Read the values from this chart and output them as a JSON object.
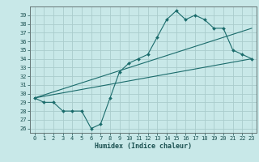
{
  "title": "",
  "xlabel": "Humidex (Indice chaleur)",
  "bg_color": "#c8e8e8",
  "grid_color": "#aacccc",
  "line_color": "#1a6b6b",
  "xlim": [
    -0.5,
    23.5
  ],
  "ylim": [
    25.5,
    40.0
  ],
  "xticks": [
    0,
    1,
    2,
    3,
    4,
    5,
    6,
    7,
    8,
    9,
    10,
    11,
    12,
    13,
    14,
    15,
    16,
    17,
    18,
    19,
    20,
    21,
    22,
    23
  ],
  "yticks": [
    26,
    27,
    28,
    29,
    30,
    31,
    32,
    33,
    34,
    35,
    36,
    37,
    38,
    39
  ],
  "main_line_x": [
    0,
    1,
    2,
    3,
    4,
    5,
    6,
    7,
    8,
    9,
    10,
    11,
    12,
    13,
    14,
    15,
    16,
    17,
    18,
    19,
    20,
    21,
    22,
    23
  ],
  "main_line_y": [
    29.5,
    29.0,
    29.0,
    28.0,
    28.0,
    28.0,
    26.0,
    26.5,
    29.5,
    32.5,
    33.5,
    34.0,
    34.5,
    36.5,
    38.5,
    39.5,
    38.5,
    39.0,
    38.5,
    37.5,
    37.5,
    35.0,
    34.5,
    34.0
  ],
  "upper_line_x": [
    0,
    23
  ],
  "upper_line_y": [
    29.5,
    37.5
  ],
  "lower_line_x": [
    0,
    23
  ],
  "lower_line_y": [
    29.5,
    34.0
  ]
}
